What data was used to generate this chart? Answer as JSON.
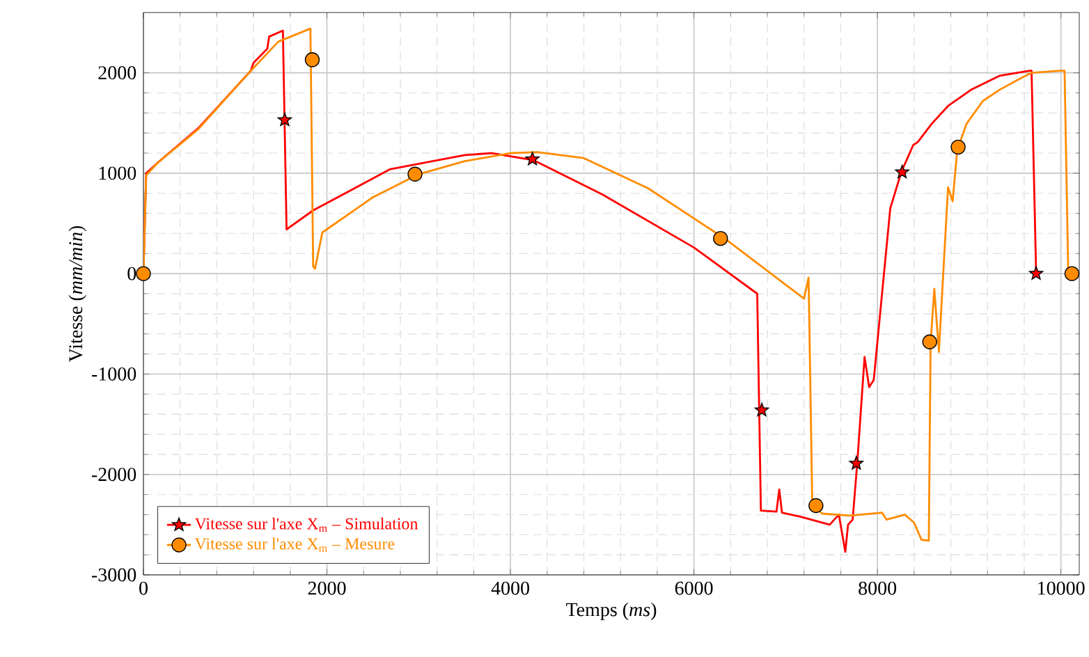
{
  "chart_data": {
    "type": "line",
    "xlabel": "Temps (*ms*)",
    "ylabel": "Vitesse (*mm/min*)",
    "xlim": [
      0,
      10200
    ],
    "ylim": [
      -3000,
      2600
    ],
    "xticks": [
      0,
      2000,
      4000,
      6000,
      8000,
      10000
    ],
    "yticks": [
      -3000,
      -2000,
      -1000,
      0,
      1000,
      2000
    ],
    "grid": true,
    "legend": "bottom left",
    "series": [
      {
        "name": "Vitesse sur l'axe X$_{m}$ – Simulation",
        "color": "#ff0000",
        "x": [
          0,
          30,
          150,
          600,
          1000,
          1170,
          1200,
          1350,
          1370,
          1520,
          1560,
          1850,
          2690,
          3500,
          3800,
          4250,
          5000,
          6000,
          6690,
          6730,
          6900,
          6930,
          6960,
          7160,
          7480,
          7580,
          7650,
          7680,
          7730,
          7780,
          7860,
          7910,
          7960,
          8140,
          8260,
          8390,
          8440,
          8590,
          8770,
          9020,
          9330,
          9660,
          9680,
          9730
        ],
        "values": [
          0,
          1000,
          1100,
          1450,
          1850,
          2020,
          2100,
          2240,
          2360,
          2420,
          440,
          630,
          1040,
          1180,
          1200,
          1130,
          790,
          260,
          -200,
          -2360,
          -2370,
          -2150,
          -2380,
          -2420,
          -2500,
          -2400,
          -2770,
          -2500,
          -2450,
          -1890,
          -830,
          -1130,
          -1060,
          650,
          1010,
          1280,
          1310,
          1490,
          1670,
          1830,
          1970,
          2020,
          2020,
          0
        ]
      },
      {
        "name": "Vitesse sur l'axe X$_{m}$ – Mesure",
        "color": "#ff8c00",
        "x": [
          0,
          30,
          150,
          600,
          1000,
          1170,
          1470,
          1820,
          1850,
          1870,
          1950,
          2500,
          3000,
          3500,
          4000,
          4300,
          4800,
          5500,
          6350,
          7200,
          7250,
          7290,
          7400,
          7700,
          8050,
          8100,
          8300,
          8400,
          8480,
          8560,
          8580,
          8620,
          8670,
          8770,
          8820,
          8870,
          8970,
          9150,
          9330,
          9530,
          9680,
          9990,
          10040,
          10080,
          10120
        ],
        "values": [
          0,
          980,
          1100,
          1440,
          1850,
          2020,
          2310,
          2440,
          70,
          50,
          410,
          760,
          990,
          1120,
          1200,
          1210,
          1150,
          850,
          340,
          -250,
          -40,
          -2310,
          -2390,
          -2410,
          -2380,
          -2450,
          -2400,
          -2480,
          -2650,
          -2660,
          -690,
          -150,
          -780,
          860,
          720,
          1230,
          1490,
          1720,
          1830,
          1930,
          2000,
          2020,
          2020,
          0,
          0
        ]
      },
      {
        "type": "scatter",
        "color": "#ff0000",
        "marker": "star",
        "x": [
          1540,
          4240,
          6740,
          7770,
          8270,
          9730
        ],
        "values": [
          1530,
          1140,
          -1360,
          -1890,
          1010,
          0
        ]
      },
      {
        "type": "scatter",
        "color": "#ff8c00",
        "marker": "circle",
        "x": [
          0,
          1840,
          2960,
          6290,
          7330,
          8570,
          8880,
          10120
        ],
        "values": [
          0,
          2130,
          990,
          350,
          -2310,
          -680,
          1260,
          0
        ]
      }
    ]
  }
}
